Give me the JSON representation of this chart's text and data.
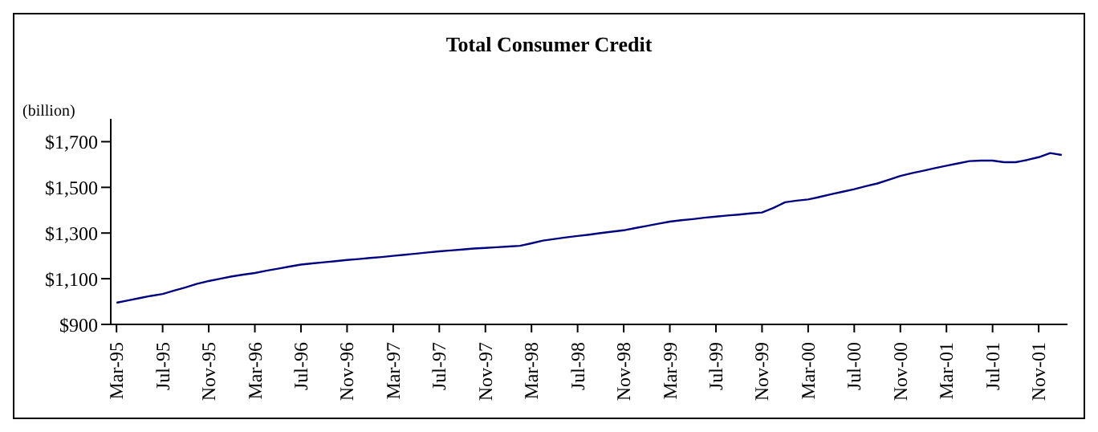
{
  "chart_data": {
    "type": "line",
    "title": "Total Consumer Credit",
    "ylabel": "(billion)",
    "categories": [
      "Mar-95",
      null,
      null,
      null,
      "Jul-95",
      null,
      null,
      null,
      "Nov-95",
      null,
      null,
      null,
      "Mar-96",
      null,
      null,
      null,
      "Jul-96",
      null,
      null,
      null,
      "Nov-96",
      null,
      null,
      null,
      "Mar-97",
      null,
      null,
      null,
      "Jul-97",
      null,
      null,
      null,
      "Nov-97",
      null,
      null,
      null,
      "Mar-98",
      null,
      null,
      null,
      "Jul-98",
      null,
      null,
      null,
      "Nov-98",
      null,
      null,
      null,
      "Mar-99",
      null,
      null,
      null,
      "Jul-99",
      null,
      null,
      null,
      "Nov-99",
      null,
      null,
      null,
      "Mar-00",
      null,
      null,
      null,
      "Jul-00",
      null,
      null,
      null,
      "Nov-00",
      null,
      null,
      null,
      "Mar-01",
      null,
      null,
      null,
      "Jul-01",
      null,
      null,
      null,
      "Nov-01",
      null,
      null
    ],
    "series": [
      {
        "color": "#000080",
        "values": [
          995,
          1005,
          1015,
          1025,
          1033,
          1048,
          1062,
          1078,
          1090,
          1100,
          1110,
          1118,
          1125,
          1135,
          1144,
          1153,
          1162,
          1167,
          1172,
          1177,
          1182,
          1186,
          1191,
          1195,
          1200,
          1205,
          1210,
          1215,
          1220,
          1224,
          1228,
          1232,
          1235,
          1238,
          1241,
          1244,
          1255,
          1267,
          1274,
          1281,
          1287,
          1293,
          1300,
          1306,
          1312,
          1322,
          1331,
          1341,
          1350,
          1356,
          1361,
          1367,
          1372,
          1377,
          1381,
          1386,
          1390,
          1410,
          1435,
          1442,
          1447,
          1458,
          1470,
          1481,
          1492,
          1505,
          1517,
          1533,
          1550,
          1562,
          1573,
          1584,
          1595,
          1605,
          1615,
          1617,
          1617,
          1610,
          1610,
          1620,
          1632,
          1650,
          1642
        ]
      }
    ],
    "ylim": [
      900,
      1800
    ],
    "yticks": [
      {
        "value": 900,
        "label": "$900"
      },
      {
        "value": 1100,
        "label": "$1,100"
      },
      {
        "value": 1300,
        "label": "$1,300"
      },
      {
        "value": 1500,
        "label": "$1,500"
      },
      {
        "value": 1700,
        "label": "$1,700"
      }
    ],
    "grid": false,
    "legend": false,
    "marker": "none",
    "line_style": "solid"
  }
}
